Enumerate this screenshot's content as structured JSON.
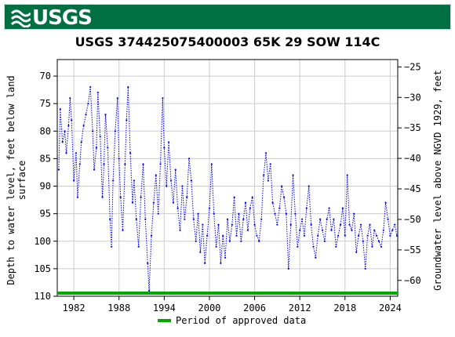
{
  "header": {
    "agency": "USGS"
  },
  "colors": {
    "banner": "#006f41",
    "series": "#0000ff",
    "approved": "#00aa00",
    "grid": "#cccccc"
  },
  "chart_data": {
    "type": "scatter",
    "title": "USGS 374425075400003 65K 29 SOW 114C",
    "ylabel_left": "Depth to water level, feet below land surface",
    "ylabel_left_lines": [
      "Depth to water level, feet below land",
      "surface"
    ],
    "ylabel_right": "Groundwater level above NGVD 1929, feet",
    "xlim": [
      1979.8,
      2025.0
    ],
    "ylim_left": [
      110,
      67
    ],
    "ylim_right": [
      -62.6,
      -23.8
    ],
    "x_ticks": [
      1982,
      1988,
      1994,
      2000,
      2006,
      2012,
      2018,
      2024
    ],
    "y_ticks_left": [
      70,
      75,
      80,
      85,
      90,
      95,
      100,
      105,
      110
    ],
    "y_ticks_right": [
      -25,
      -30,
      -35,
      -40,
      -45,
      -50,
      -55,
      -60
    ],
    "grid": true,
    "legend": {
      "placement": "bottom",
      "label": "Period of approved data"
    },
    "approved_period": [
      1979.8,
      2025.0
    ],
    "series": [
      {
        "points": [
          [
            1980.0,
            87.0
          ],
          [
            1980.2,
            76.0
          ],
          [
            1980.5,
            82.0
          ],
          [
            1980.8,
            80.0
          ],
          [
            1981.0,
            84.0
          ],
          [
            1981.3,
            79.0
          ],
          [
            1981.5,
            74.0
          ],
          [
            1981.7,
            78.0
          ],
          [
            1982.0,
            89.0
          ],
          [
            1982.3,
            84.0
          ],
          [
            1982.5,
            92.0
          ],
          [
            1982.8,
            86.0
          ],
          [
            1983.0,
            82.0
          ],
          [
            1983.3,
            79.0
          ],
          [
            1983.6,
            77.0
          ],
          [
            1983.9,
            75.0
          ],
          [
            1984.2,
            72.0
          ],
          [
            1984.5,
            80.0
          ],
          [
            1984.7,
            87.0
          ],
          [
            1985.0,
            83.0
          ],
          [
            1985.2,
            73.0
          ],
          [
            1985.5,
            81.0
          ],
          [
            1985.8,
            92.0
          ],
          [
            1986.0,
            86.0
          ],
          [
            1986.2,
            77.0
          ],
          [
            1986.5,
            83.0
          ],
          [
            1986.8,
            96.0
          ],
          [
            1987.0,
            101.0
          ],
          [
            1987.2,
            89.0
          ],
          [
            1987.5,
            80.0
          ],
          [
            1987.8,
            74.0
          ],
          [
            1988.0,
            85.0
          ],
          [
            1988.2,
            92.0
          ],
          [
            1988.5,
            98.0
          ],
          [
            1988.8,
            86.0
          ],
          [
            1989.0,
            78.0
          ],
          [
            1989.2,
            72.0
          ],
          [
            1989.5,
            84.0
          ],
          [
            1989.8,
            93.0
          ],
          [
            1990.0,
            89.0
          ],
          [
            1990.3,
            96.0
          ],
          [
            1990.6,
            101.0
          ],
          [
            1990.9,
            92.0
          ],
          [
            1991.2,
            86.0
          ],
          [
            1991.5,
            96.0
          ],
          [
            1991.8,
            104.0
          ],
          [
            1992.0,
            109.0
          ],
          [
            1992.3,
            99.0
          ],
          [
            1992.6,
            93.0
          ],
          [
            1992.9,
            88.0
          ],
          [
            1993.2,
            95.0
          ],
          [
            1993.5,
            86.0
          ],
          [
            1993.8,
            74.0
          ],
          [
            1994.0,
            83.0
          ],
          [
            1994.3,
            90.0
          ],
          [
            1994.6,
            82.0
          ],
          [
            1994.9,
            89.0
          ],
          [
            1995.2,
            93.0
          ],
          [
            1995.5,
            87.0
          ],
          [
            1995.8,
            94.0
          ],
          [
            1996.1,
            98.0
          ],
          [
            1996.4,
            90.0
          ],
          [
            1996.7,
            96.0
          ],
          [
            1997.0,
            92.0
          ],
          [
            1997.3,
            85.0
          ],
          [
            1997.6,
            89.0
          ],
          [
            1997.9,
            96.0
          ],
          [
            1998.2,
            100.0
          ],
          [
            1998.5,
            95.0
          ],
          [
            1998.8,
            102.0
          ],
          [
            1999.1,
            97.0
          ],
          [
            1999.4,
            104.0
          ],
          [
            1999.7,
            99.0
          ],
          [
            2000.0,
            94.0
          ],
          [
            2000.3,
            86.0
          ],
          [
            2000.6,
            95.0
          ],
          [
            2000.9,
            101.0
          ],
          [
            2001.2,
            97.0
          ],
          [
            2001.5,
            104.0
          ],
          [
            2001.8,
            99.0
          ],
          [
            2002.1,
            103.0
          ],
          [
            2002.4,
            96.0
          ],
          [
            2002.7,
            100.0
          ],
          [
            2003.0,
            97.0
          ],
          [
            2003.3,
            92.0
          ],
          [
            2003.6,
            99.0
          ],
          [
            2003.9,
            95.0
          ],
          [
            2004.2,
            100.0
          ],
          [
            2004.5,
            96.0
          ],
          [
            2004.8,
            93.0
          ],
          [
            2005.1,
            98.0
          ],
          [
            2005.4,
            94.0
          ],
          [
            2005.7,
            92.0
          ],
          [
            2006.0,
            97.0
          ],
          [
            2006.3,
            99.0
          ],
          [
            2006.6,
            100.0
          ],
          [
            2006.9,
            96.0
          ],
          [
            2007.2,
            88.0
          ],
          [
            2007.5,
            84.0
          ],
          [
            2007.8,
            89.0
          ],
          [
            2008.1,
            86.0
          ],
          [
            2008.4,
            93.0
          ],
          [
            2008.7,
            95.0
          ],
          [
            2009.0,
            97.0
          ],
          [
            2009.3,
            94.0
          ],
          [
            2009.6,
            90.0
          ],
          [
            2009.9,
            92.0
          ],
          [
            2010.2,
            95.0
          ],
          [
            2010.5,
            105.0
          ],
          [
            2010.8,
            97.0
          ],
          [
            2011.1,
            88.0
          ],
          [
            2011.4,
            95.0
          ],
          [
            2011.7,
            101.0
          ],
          [
            2012.0,
            98.0
          ],
          [
            2012.3,
            96.0
          ],
          [
            2012.6,
            99.0
          ],
          [
            2012.9,
            94.0
          ],
          [
            2013.2,
            90.0
          ],
          [
            2013.5,
            97.0
          ],
          [
            2013.8,
            101.0
          ],
          [
            2014.1,
            103.0
          ],
          [
            2014.4,
            99.0
          ],
          [
            2014.7,
            96.0
          ],
          [
            2015.0,
            98.0
          ],
          [
            2015.3,
            100.0
          ],
          [
            2015.6,
            96.0
          ],
          [
            2015.9,
            94.0
          ],
          [
            2016.2,
            98.0
          ],
          [
            2016.5,
            96.0
          ],
          [
            2016.8,
            101.0
          ],
          [
            2017.1,
            99.0
          ],
          [
            2017.4,
            97.0
          ],
          [
            2017.7,
            94.0
          ],
          [
            2018.0,
            99.0
          ],
          [
            2018.3,
            88.0
          ],
          [
            2018.6,
            97.0
          ],
          [
            2018.9,
            98.0
          ],
          [
            2019.2,
            95.0
          ],
          [
            2019.5,
            102.0
          ],
          [
            2019.8,
            99.0
          ],
          [
            2020.1,
            97.0
          ],
          [
            2020.4,
            100.0
          ],
          [
            2020.7,
            105.0
          ],
          [
            2021.0,
            99.0
          ],
          [
            2021.3,
            97.0
          ],
          [
            2021.6,
            101.0
          ],
          [
            2021.9,
            98.0
          ],
          [
            2022.2,
            99.0
          ],
          [
            2022.5,
            100.0
          ],
          [
            2022.8,
            101.0
          ],
          [
            2023.1,
            98.0
          ],
          [
            2023.4,
            93.0
          ],
          [
            2023.7,
            96.0
          ],
          [
            2024.0,
            99.0
          ],
          [
            2024.3,
            98.0
          ],
          [
            2024.6,
            97.0
          ],
          [
            2024.9,
            99.0
          ]
        ]
      }
    ]
  }
}
